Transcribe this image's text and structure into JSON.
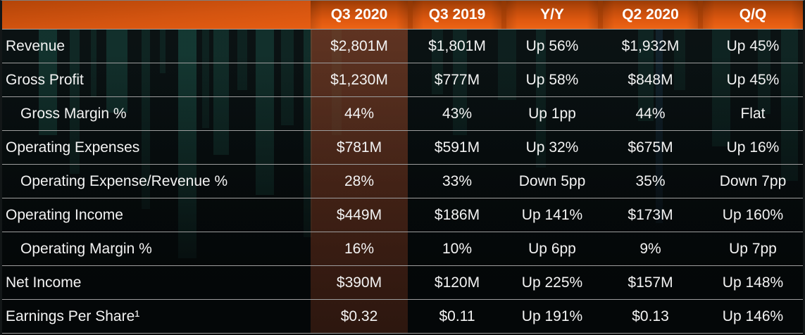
{
  "colors": {
    "accent_orange": "#E85C11",
    "header_gap_orange": "#A33E06",
    "highlight_column_brown": "#4A2A1D",
    "background": "#070B0C",
    "background_bars_teal": "#163A34",
    "row_separator": "#9E9E9E",
    "text": "#F3F3F3"
  },
  "chart_data": {
    "type": "table",
    "columns": [
      "",
      "Q3 2020",
      "Q3 2019",
      "Y/Y",
      "Q2 2020",
      "Q/Q"
    ],
    "highlighted_column": "Q3 2020",
    "rows": [
      {
        "label": "Revenue",
        "indent": false,
        "values": [
          "$2,801M",
          "$1,801M",
          "Up 56%",
          "$1,932M",
          "Up 45%"
        ]
      },
      {
        "label": "Gross Profit",
        "indent": false,
        "values": [
          "$1,230M",
          "$777M",
          "Up 58%",
          "$848M",
          "Up 45%"
        ]
      },
      {
        "label": "Gross Margin %",
        "indent": true,
        "values": [
          "44%",
          "43%",
          "Up 1pp",
          "44%",
          "Flat"
        ]
      },
      {
        "label": "Operating Expenses",
        "indent": false,
        "values": [
          "$781M",
          "$591M",
          "Up 32%",
          "$675M",
          "Up 16%"
        ]
      },
      {
        "label": "Operating Expense/Revenue %",
        "indent": true,
        "values": [
          "28%",
          "33%",
          "Down 5pp",
          "35%",
          "Down 7pp"
        ]
      },
      {
        "label": "Operating Income",
        "indent": false,
        "values": [
          "$449M",
          "$186M",
          "Up 141%",
          "$173M",
          "Up 160%"
        ]
      },
      {
        "label": "Operating Margin %",
        "indent": true,
        "values": [
          "16%",
          "10%",
          "Up 6pp",
          "9%",
          "Up 7pp"
        ]
      },
      {
        "label": "Net Income",
        "indent": false,
        "values": [
          "$390M",
          "$120M",
          "Up 225%",
          "$157M",
          "Up 148%"
        ]
      },
      {
        "label": "Earnings Per Share¹",
        "indent": false,
        "values": [
          "$0.32",
          "$0.11",
          "Up 191%",
          "$0.13",
          "Up 146%"
        ]
      }
    ]
  }
}
